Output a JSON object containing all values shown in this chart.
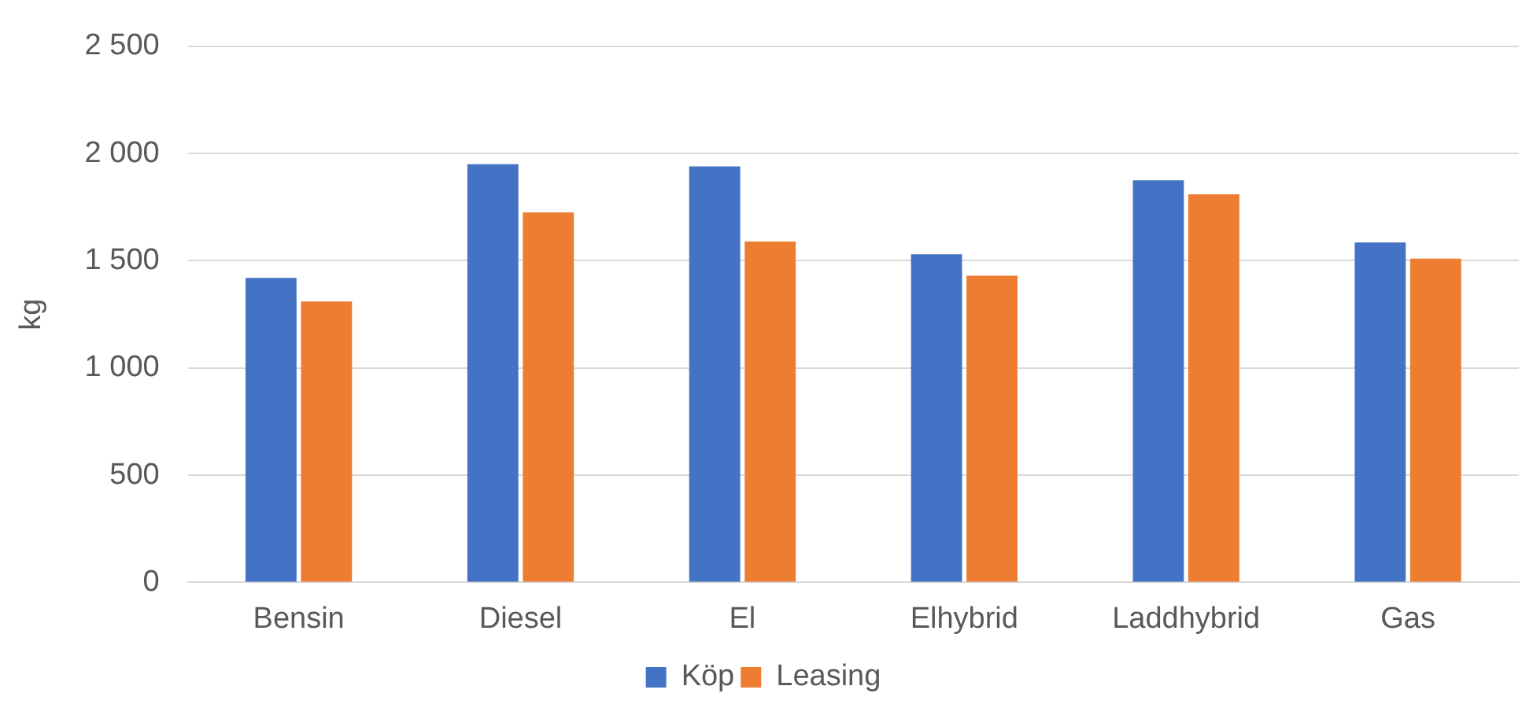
{
  "chart_data": {
    "type": "bar",
    "ylabel": "kg",
    "categories": [
      "Bensin",
      "Diesel",
      "El",
      "Elhybrid",
      "Laddhybrid",
      "Gas"
    ],
    "series": [
      {
        "name": "Köp",
        "color": "#4472c4",
        "values": [
          1420,
          1950,
          1940,
          1530,
          1875,
          1585
        ]
      },
      {
        "name": "Leasing",
        "color": "#ed7d31",
        "values": [
          1310,
          1725,
          1590,
          1430,
          1810,
          1510
        ]
      }
    ],
    "ylim": [
      0,
      2500
    ],
    "yticks": [
      {
        "value": 0,
        "label": "0"
      },
      {
        "value": 500,
        "label": "500"
      },
      {
        "value": 1000,
        "label": "1 000"
      },
      {
        "value": 1500,
        "label": "1 500"
      },
      {
        "value": 2000,
        "label": "2 000"
      },
      {
        "value": 2500,
        "label": "2 500"
      }
    ],
    "grid": "y",
    "legend": "bottom"
  }
}
